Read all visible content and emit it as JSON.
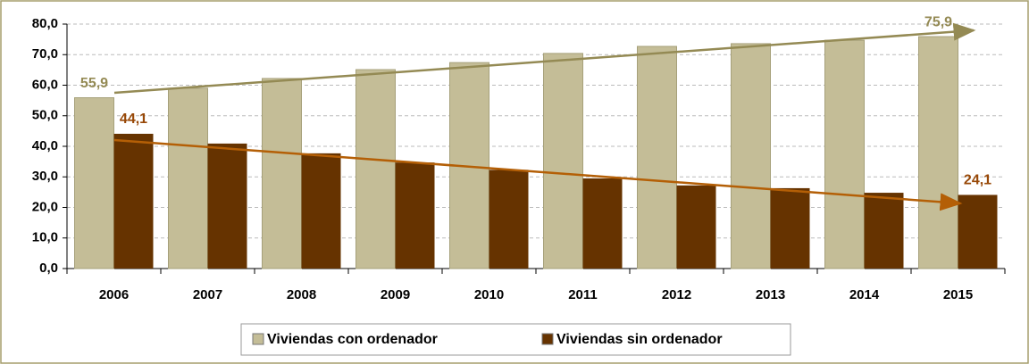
{
  "chart_data": {
    "type": "bar",
    "categories": [
      "2006",
      "2007",
      "2008",
      "2009",
      "2010",
      "2011",
      "2012",
      "2013",
      "2014",
      "2015"
    ],
    "series": [
      {
        "name": "Viviendas con ordenador",
        "color": "#c4bd97",
        "label_color": "#948a54",
        "values": [
          55.9,
          59.0,
          62.2,
          65.1,
          67.4,
          70.4,
          72.7,
          73.6,
          74.7,
          75.9
        ],
        "value_labels": [
          "55,9",
          null,
          null,
          null,
          null,
          null,
          null,
          null,
          null,
          "75,9"
        ]
      },
      {
        "name": "Viviendas sin ordenador",
        "color": "#663300",
        "label_color": "#984807",
        "values": [
          44.1,
          40.9,
          37.7,
          34.7,
          32.3,
          29.5,
          27.2,
          26.3,
          24.8,
          24.1
        ],
        "value_labels": [
          "44,1",
          null,
          null,
          null,
          null,
          null,
          null,
          null,
          null,
          "24,1"
        ]
      }
    ],
    "ylim": [
      0,
      80
    ],
    "yticks": [
      {
        "value": 0,
        "label": "0,0"
      },
      {
        "value": 10,
        "label": "10,0"
      },
      {
        "value": 20,
        "label": "20,0"
      },
      {
        "value": 30,
        "label": "30,0"
      },
      {
        "value": 40,
        "label": "40,0"
      },
      {
        "value": 50,
        "label": "50,0"
      },
      {
        "value": 60,
        "label": "60,0"
      },
      {
        "value": 70,
        "label": "70,0"
      },
      {
        "value": 80,
        "label": "80,0"
      }
    ],
    "grid": true
  }
}
